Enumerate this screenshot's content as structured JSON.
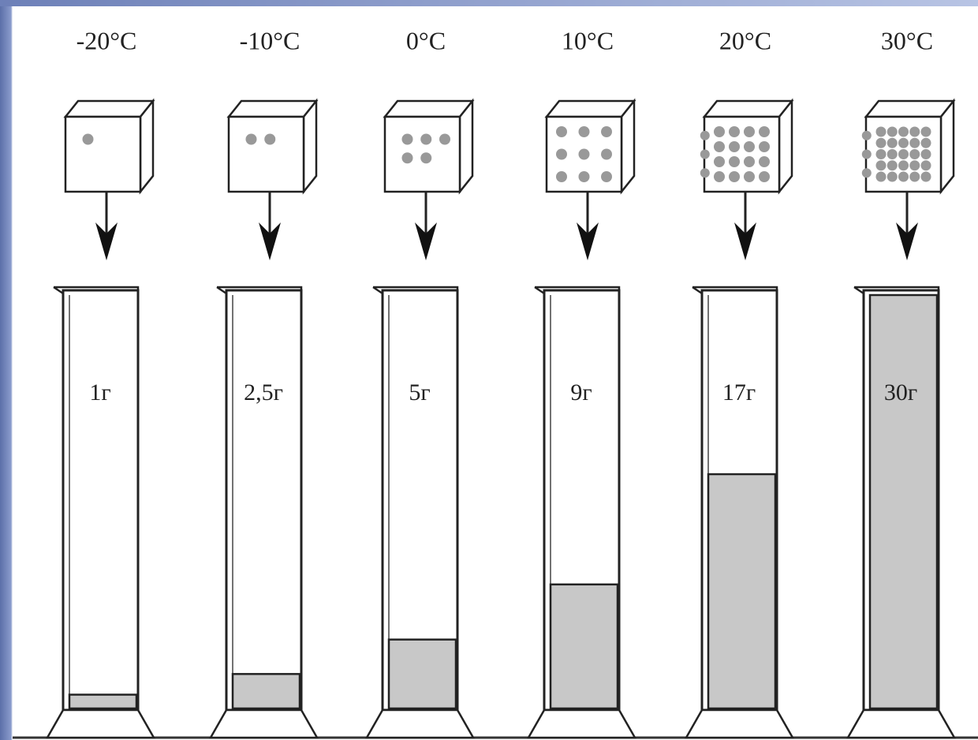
{
  "columns": [
    {
      "temperature": "-20°C",
      "label": "1г",
      "grams": 1
    },
    {
      "temperature": "-10°C",
      "label": "2,5г",
      "grams": 2.5
    },
    {
      "temperature": "0°C",
      "label": "5г",
      "grams": 5
    },
    {
      "temperature": "10°C",
      "label": "9г",
      "grams": 9
    },
    {
      "temperature": "20°C",
      "label": "17г",
      "grams": 17
    },
    {
      "temperature": "30°C",
      "label": "30г",
      "grams": 30
    }
  ]
}
